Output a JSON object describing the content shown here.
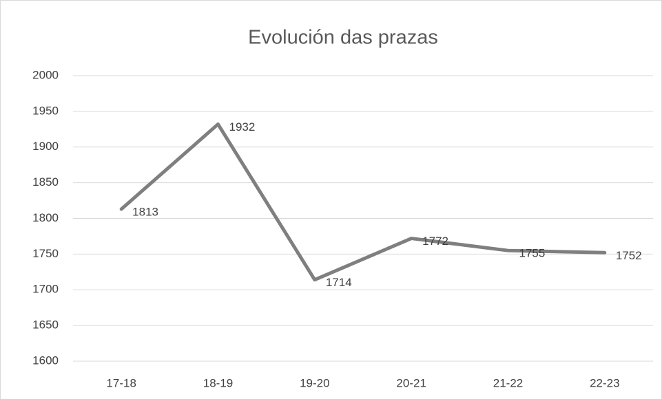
{
  "chart_data": {
    "type": "line",
    "title": "Evolución das prazas",
    "categories": [
      "17-18",
      "18-19",
      "19-20",
      "20-21",
      "21-22",
      "22-23"
    ],
    "values": [
      1813,
      1932,
      1714,
      1772,
      1755,
      1752
    ],
    "color": "#7f7f7f",
    "ylim": [
      1600,
      2000
    ],
    "yticks": [
      1600,
      1650,
      1700,
      1750,
      1800,
      1850,
      1900,
      1950,
      2000
    ],
    "grid": true
  }
}
